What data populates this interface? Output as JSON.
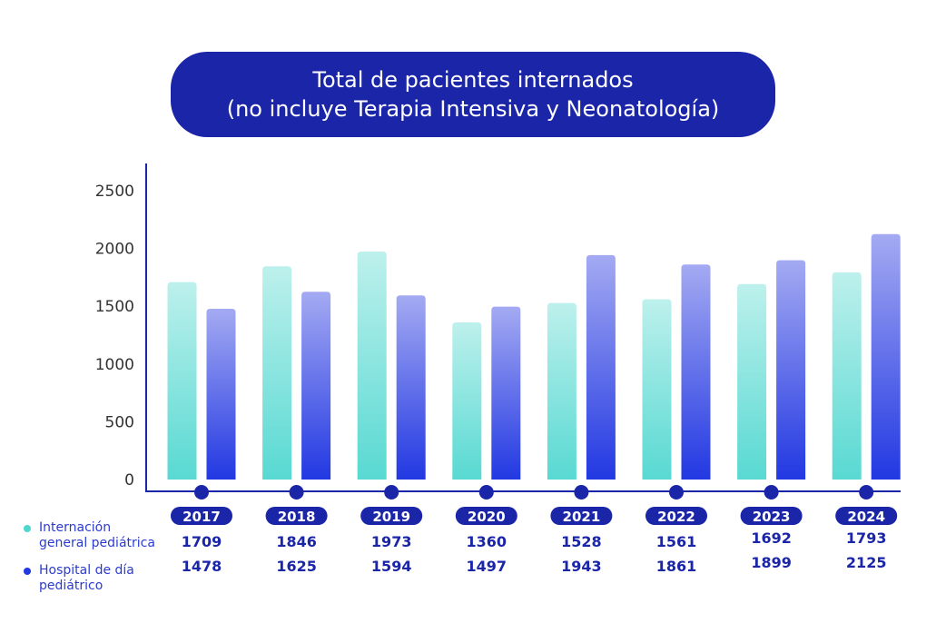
{
  "title": {
    "line1": "Total de pacientes internados",
    "line2": "(no incluye Terapia Intensiva y Neonatología)"
  },
  "colors": {
    "title_bg": "#1b25a8",
    "axis": "#1b25a8",
    "series1_top": "#bdf0ec",
    "series1_bottom": "#58d9d2",
    "series2_top": "#a4aaf2",
    "series2_bottom": "#2238e2"
  },
  "legend": [
    {
      "label": "Internación general pediátrica",
      "line1": "Internación",
      "line2": "general pediátrica",
      "color": "#4fd6cd"
    },
    {
      "label": "Hospital de día pediátrico",
      "line1": "Hospital de día",
      "line2": "pediátrico",
      "color": "#2238e2"
    }
  ],
  "chart_data": {
    "type": "bar",
    "title": "Total de pacientes internados (no incluye Terapia Intensiva y Neonatología)",
    "xlabel": "",
    "ylabel": "",
    "ylim": [
      0,
      2500
    ],
    "yticks": [
      0,
      500,
      1000,
      1500,
      2000,
      2500
    ],
    "grid": false,
    "legend_position": "bottom-left",
    "categories": [
      "2017",
      "2018",
      "2019",
      "2020",
      "2021",
      "2022",
      "2023",
      "2024"
    ],
    "series": [
      {
        "name": "Internación general pediátrica",
        "values": [
          1709,
          1846,
          1973,
          1360,
          1528,
          1561,
          1692,
          1793
        ]
      },
      {
        "name": "Hospital de día pediátrico",
        "values": [
          1478,
          1625,
          1594,
          1497,
          1943,
          1861,
          1899,
          2125
        ]
      }
    ]
  }
}
